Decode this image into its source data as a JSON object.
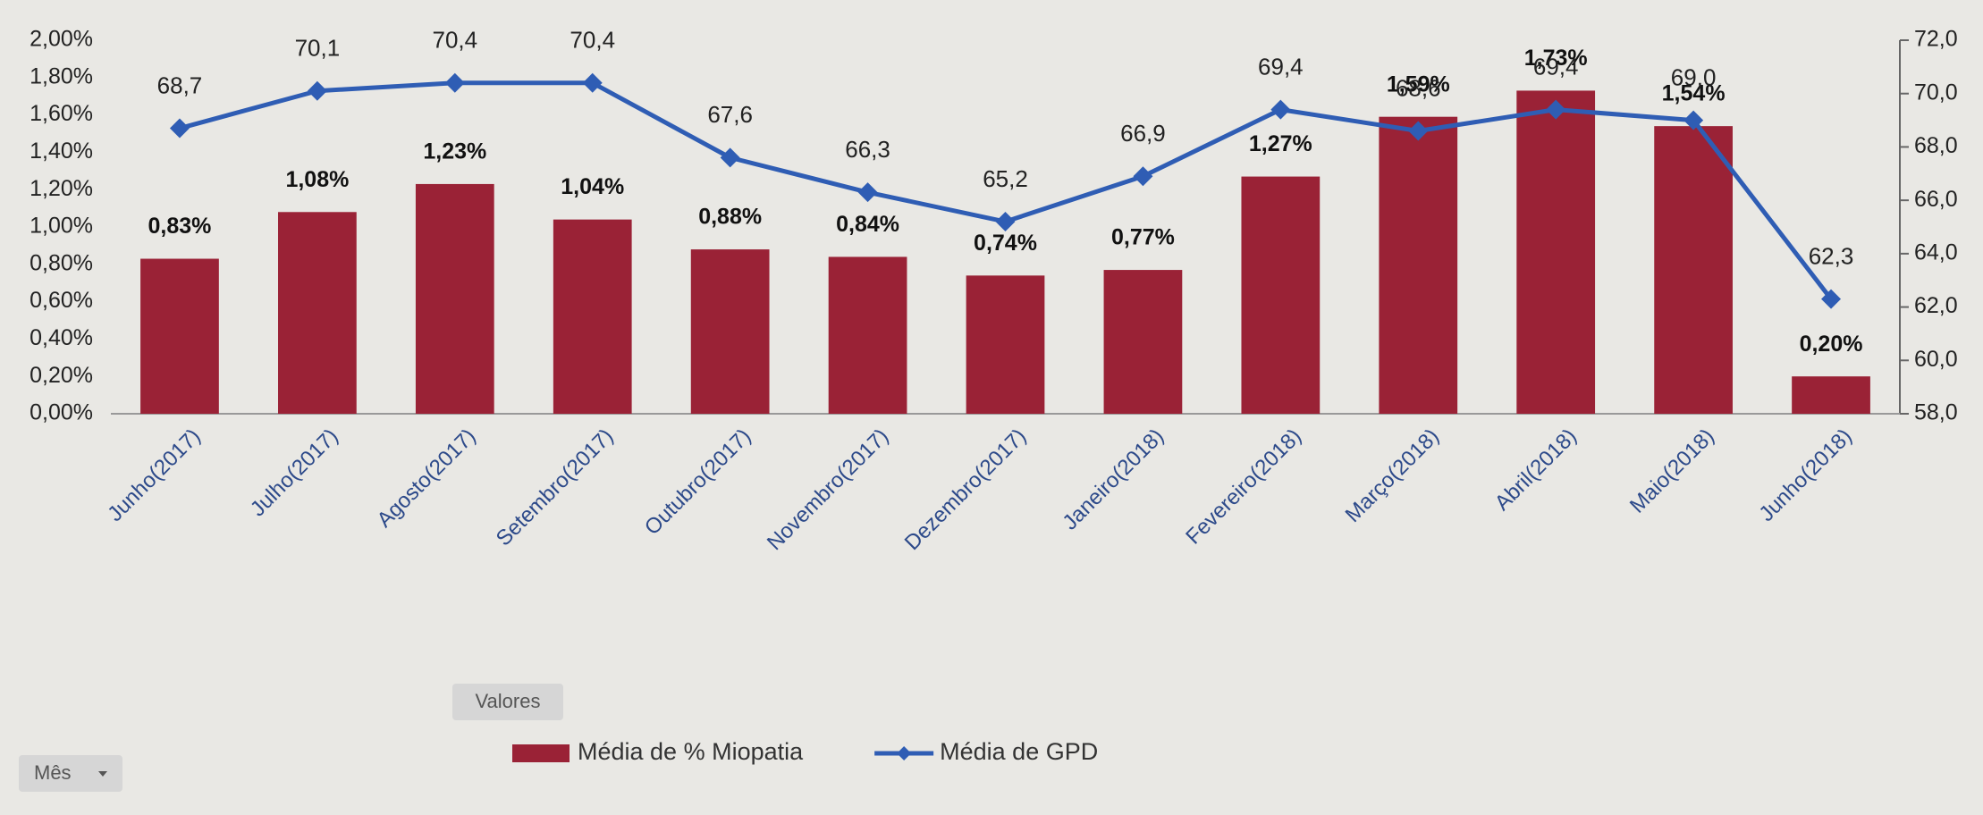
{
  "chart_data": {
    "type": "bar",
    "categories": [
      "Junho(2017)",
      "Julho(2017)",
      "Agosto(2017)",
      "Setembro(2017)",
      "Outubro(2017)",
      "Novembro(2017)",
      "Dezembro(2017)",
      "Janeiro(2018)",
      "Fevereiro(2018)",
      "Março(2018)",
      "Abril(2018)",
      "Maio(2018)",
      "Junho(2018)"
    ],
    "series": [
      {
        "name": "Média de % Miopatia",
        "type": "bar",
        "color": "#9a2236",
        "values": [
          0.83,
          1.08,
          1.23,
          1.04,
          0.88,
          0.84,
          0.74,
          0.77,
          1.27,
          1.59,
          1.73,
          1.54,
          0.2
        ],
        "value_labels": [
          "0,83%",
          "1,08%",
          "1,23%",
          "1,04%",
          "0,88%",
          "0,84%",
          "0,74%",
          "0,77%",
          "1,27%",
          "1,59%",
          "1,73%",
          "1,54%",
          "0,20%"
        ]
      },
      {
        "name": "Média de GPD",
        "type": "line",
        "axis": "y2",
        "color": "#2f5db4",
        "values": [
          68.7,
          70.1,
          70.4,
          70.4,
          67.6,
          66.3,
          65.2,
          66.9,
          69.4,
          68.6,
          69.4,
          69.0,
          62.3
        ],
        "value_labels": [
          "68,7",
          "70,1",
          "70,4",
          "70,4",
          "67,6",
          "66,3",
          "65,2",
          "66,9",
          "69,4",
          "68,6",
          "69,4",
          "69,0",
          "62,3"
        ]
      }
    ],
    "ylim": [
      0,
      2
    ],
    "yticks": [
      {
        "value": 0,
        "label": "0,00%"
      },
      {
        "value": 0.2,
        "label": "0,20%"
      },
      {
        "value": 0.4,
        "label": "0,40%"
      },
      {
        "value": 0.6,
        "label": "0,60%"
      },
      {
        "value": 0.8,
        "label": "0,80%"
      },
      {
        "value": 1.0,
        "label": "1,00%"
      },
      {
        "value": 1.2,
        "label": "1,20%"
      },
      {
        "value": 1.4,
        "label": "1,40%"
      },
      {
        "value": 1.6,
        "label": "1,60%"
      },
      {
        "value": 1.8,
        "label": "1,80%"
      },
      {
        "value": 2.0,
        "label": "2,00%"
      }
    ],
    "y2lim": [
      58,
      72
    ],
    "y2ticks": [
      {
        "value": 58,
        "label": "58,0"
      },
      {
        "value": 60,
        "label": "60,0"
      },
      {
        "value": 62,
        "label": "62,0"
      },
      {
        "value": 64,
        "label": "64,0"
      },
      {
        "value": 66,
        "label": "66,0"
      },
      {
        "value": 68,
        "label": "68,0"
      },
      {
        "value": 70,
        "label": "70,0"
      },
      {
        "value": 72,
        "label": "72,0"
      }
    ],
    "grid": false,
    "legend": "bottom",
    "buttons": {
      "values_field": "Valores",
      "axis_field": "Mês"
    }
  }
}
